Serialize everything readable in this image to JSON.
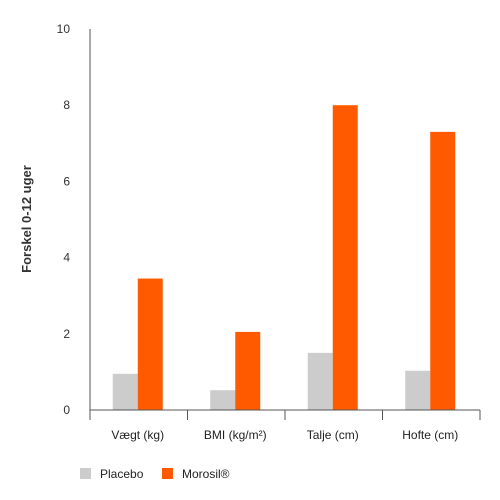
{
  "chart_data": {
    "type": "bar",
    "title": "",
    "xlabel": "",
    "ylabel": "Forskel 0-12 uger",
    "ylim": [
      0,
      10
    ],
    "yticks": [
      0,
      2,
      4,
      6,
      8,
      10
    ],
    "categories": [
      "Vægt (kg)",
      "BMI (kg/m²)",
      "Talje (cm)",
      "Hofte (cm)"
    ],
    "series": [
      {
        "name": "Placebo",
        "color": "#cccccc",
        "values": [
          0.95,
          0.52,
          1.5,
          1.03
        ]
      },
      {
        "name": "Morosil®",
        "color": "#ff5a00",
        "values": [
          3.45,
          2.05,
          8.0,
          7.3
        ]
      }
    ],
    "grid": false,
    "legend_position": "bottom-left"
  }
}
